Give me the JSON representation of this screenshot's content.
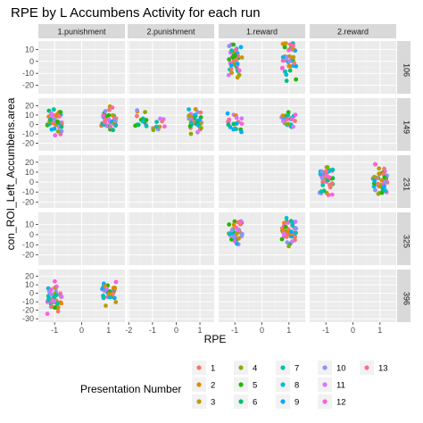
{
  "chart_data": {
    "type": "scatter",
    "title": "RPE by L Accumbens Activity for each run",
    "xlabel": "RPE",
    "ylabel": "con_ROI_Left_Accumbens.area",
    "facet_columns": [
      "1.punishment",
      "2.punishment",
      "1.reward",
      "2.reward"
    ],
    "facet_rows": [
      "106",
      "149",
      "231",
      "325",
      "396"
    ],
    "panel_bg": "#ebebeb",
    "strip_bg": "#d9d9d9",
    "grid": true,
    "legend_position": "bottom",
    "x_axes": [
      {
        "ticks": [
          -1,
          0,
          1
        ],
        "labels": [
          "-1",
          "0",
          "1"
        ],
        "range": [
          -1.6,
          1.6
        ]
      },
      {
        "ticks": [
          -2,
          -1,
          0,
          1
        ],
        "labels": [
          "-2",
          "-1",
          "0",
          "1"
        ],
        "range": [
          -2.05,
          1.6
        ]
      },
      {
        "ticks": [
          -1,
          0,
          1
        ],
        "labels": [
          "-1",
          "0",
          "1"
        ],
        "range": [
          -1.6,
          1.6
        ]
      },
      {
        "ticks": [
          -1,
          0,
          1
        ],
        "labels": [
          "-1",
          "0",
          "1"
        ],
        "range": [
          -1.6,
          1.6
        ]
      }
    ],
    "y_axes": [
      {
        "ticks": [
          -20,
          -10,
          0,
          10
        ],
        "labels": [
          "-20",
          "-10",
          "0",
          "10"
        ],
        "range": [
          -27,
          17
        ]
      },
      {
        "ticks": [
          -20,
          -10,
          0,
          10,
          20
        ],
        "labels": [
          "-20",
          "-10",
          "0",
          "10",
          "20"
        ],
        "range": [
          -28,
          28
        ]
      },
      {
        "ticks": [
          -20,
          -10,
          0,
          10,
          20
        ],
        "labels": [
          "-20",
          "-10",
          "0",
          "10",
          "20"
        ],
        "range": [
          -26,
          27
        ]
      },
      {
        "ticks": [
          -20,
          -10,
          0,
          10
        ],
        "labels": [
          "-20",
          "-10",
          "0",
          "10"
        ],
        "range": [
          -30,
          22
        ]
      },
      {
        "ticks": [
          -30,
          -20,
          -10,
          0,
          10,
          20
        ],
        "labels": [
          "-30",
          "-20",
          "-10",
          "0",
          "10",
          "20"
        ],
        "range": [
          -34,
          28
        ]
      }
    ],
    "legend": {
      "title": "Presentation Number",
      "entries": [
        {
          "label": "1",
          "color": "#F8766D"
        },
        {
          "label": "2",
          "color": "#E18A00"
        },
        {
          "label": "3",
          "color": "#BE9C00"
        },
        {
          "label": "4",
          "color": "#8CAB00"
        },
        {
          "label": "5",
          "color": "#24B700"
        },
        {
          "label": "6",
          "color": "#00BE70"
        },
        {
          "label": "7",
          "color": "#00C1AB"
        },
        {
          "label": "8",
          "color": "#00BBDA"
        },
        {
          "label": "9",
          "color": "#00ACFC"
        },
        {
          "label": "10",
          "color": "#8B93FF"
        },
        {
          "label": "11",
          "color": "#D575FE"
        },
        {
          "label": "12",
          "color": "#F962DD"
        },
        {
          "label": "13",
          "color": "#FF65AC"
        }
      ]
    },
    "clusters": [
      {
        "row": 0,
        "col": 2,
        "x": -1,
        "y": 3,
        "spread": 9,
        "ymin": -20,
        "ymax": 14,
        "n": 38
      },
      {
        "row": 0,
        "col": 2,
        "x": 1,
        "y": 3,
        "spread": 8,
        "ymin": -20,
        "ymax": 15,
        "n": 42
      },
      {
        "row": 1,
        "col": 0,
        "x": -1,
        "y": 3,
        "spread": 6,
        "ymin": -14,
        "ymax": 16,
        "n": 40
      },
      {
        "row": 1,
        "col": 0,
        "x": 1,
        "y": 5,
        "spread": 6,
        "ymin": -10,
        "ymax": 22,
        "n": 38
      },
      {
        "row": 1,
        "col": 1,
        "x": -1.5,
        "y": 4,
        "spread": 5,
        "ymin": -6,
        "ymax": 15,
        "n": 14
      },
      {
        "row": 1,
        "col": 1,
        "x": -0.7,
        "y": 1,
        "spread": 4,
        "ymin": -8,
        "ymax": 10,
        "n": 10
      },
      {
        "row": 1,
        "col": 1,
        "x": 0.8,
        "y": 4,
        "spread": 6,
        "ymin": -10,
        "ymax": 21,
        "n": 40
      },
      {
        "row": 1,
        "col": 2,
        "x": -1,
        "y": 2,
        "spread": 5,
        "ymin": -8,
        "ymax": 12,
        "n": 20
      },
      {
        "row": 1,
        "col": 2,
        "x": 1,
        "y": 3,
        "spread": 5,
        "ymin": -7,
        "ymax": 13,
        "n": 22
      },
      {
        "row": 2,
        "col": 3,
        "x": -1,
        "y": 2,
        "spread": 7,
        "ymin": -18,
        "ymax": 15,
        "n": 38
      },
      {
        "row": 2,
        "col": 3,
        "x": 1,
        "y": 1,
        "spread": 7,
        "ymin": -19,
        "ymax": 18,
        "n": 46
      },
      {
        "row": 3,
        "col": 2,
        "x": -1,
        "y": 2,
        "spread": 7,
        "ymin": -17,
        "ymax": 13,
        "n": 36
      },
      {
        "row": 3,
        "col": 2,
        "x": 1,
        "y": 2,
        "spread": 7,
        "ymin": -15,
        "ymax": 17,
        "n": 44
      },
      {
        "row": 4,
        "col": 0,
        "x": -1,
        "y": -5,
        "spread": 9,
        "ymin": -30,
        "ymax": 14,
        "n": 46
      },
      {
        "row": 4,
        "col": 0,
        "x": 1,
        "y": 0,
        "spread": 7,
        "ymin": -15,
        "ymax": 24,
        "n": 34
      }
    ]
  }
}
